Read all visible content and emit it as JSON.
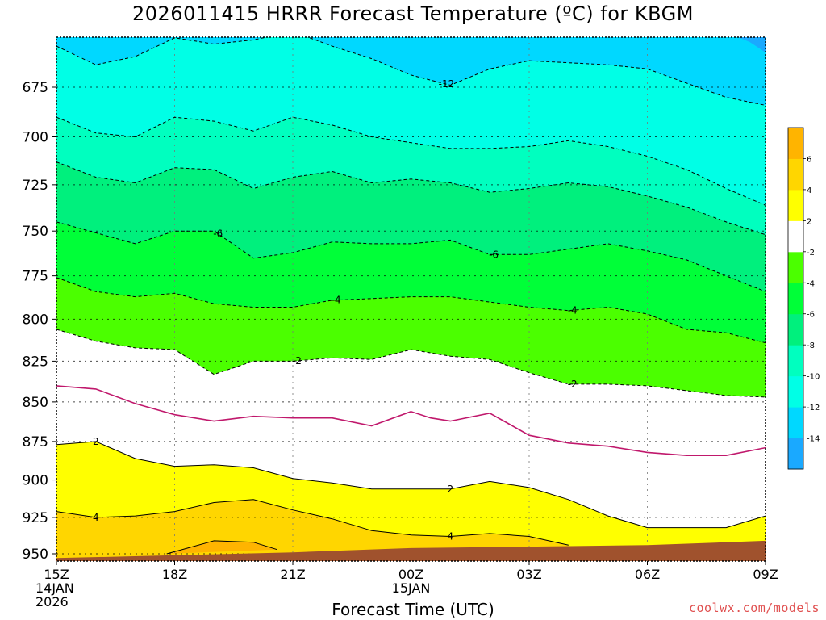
{
  "title": "2026011415 HRRR Forecast Temperature (ºC) for KBGM",
  "credit": "coolwx.com/models",
  "chart_data": {
    "type": "heatmap",
    "title": "2026011415 HRRR Forecast Temperature (ºC) for KBGM",
    "xlabel": "Forecast Time (UTC)",
    "ylabel": "",
    "x_range_hours": [
      0,
      18
    ],
    "y_range_hpa": [
      654,
      955
    ],
    "y_scale": "log-pressure (inverted)",
    "grid": true,
    "x_ticks": [
      {
        "h": 0,
        "lines": [
          "15Z",
          "14JAN",
          "2026"
        ]
      },
      {
        "h": 3,
        "lines": [
          "18Z"
        ]
      },
      {
        "h": 6,
        "lines": [
          "21Z"
        ]
      },
      {
        "h": 9,
        "lines": [
          "00Z",
          "15JAN"
        ]
      },
      {
        "h": 12,
        "lines": [
          "03Z"
        ]
      },
      {
        "h": 15,
        "lines": [
          "06Z"
        ]
      },
      {
        "h": 18,
        "lines": [
          "09Z"
        ]
      }
    ],
    "y_ticks": [
      675,
      700,
      725,
      750,
      775,
      800,
      825,
      850,
      875,
      900,
      925,
      950
    ],
    "colorbar": {
      "levels": [
        -16,
        -14,
        -12,
        -10,
        -8,
        -6,
        -4,
        -2,
        2,
        4,
        6,
        8
      ],
      "labels": [
        "-14",
        "-12",
        "-10",
        "-8",
        "-6",
        "-4",
        "-2",
        "2",
        "4",
        "6"
      ],
      "colors": [
        "#1aa9ff",
        "#00d8ff",
        "#00ffe6",
        "#00ffbf",
        "#00f07d",
        "#00ff38",
        "#4bff00",
        "#ffffff",
        "#ffff00",
        "#ffd600",
        "#ffb400"
      ]
    },
    "contours": [
      {
        "value": -12,
        "label": "-12",
        "style": "dashed",
        "color": "#000000",
        "label_at_h": 9.9,
        "points": [
          [
            0,
            655
          ],
          [
            1,
            664
          ],
          [
            2,
            660
          ],
          [
            3,
            651
          ],
          [
            4,
            654
          ],
          [
            5,
            652
          ],
          [
            6,
            648
          ],
          [
            7,
            655
          ],
          [
            8,
            661
          ],
          [
            9,
            669
          ],
          [
            10,
            674
          ],
          [
            11,
            666
          ],
          [
            12,
            662
          ],
          [
            13,
            663
          ],
          [
            14,
            664
          ],
          [
            15,
            666
          ],
          [
            16,
            673
          ],
          [
            17,
            680
          ],
          [
            18,
            684
          ]
        ]
      },
      {
        "value": -10,
        "label": "",
        "style": "dashed",
        "color": "#000000",
        "points": [
          [
            0,
            690
          ],
          [
            1,
            698
          ],
          [
            2,
            700
          ],
          [
            3,
            690
          ],
          [
            4,
            692
          ],
          [
            5,
            697
          ],
          [
            6,
            690
          ],
          [
            7,
            694
          ],
          [
            8,
            700
          ],
          [
            9,
            703
          ],
          [
            10,
            706
          ],
          [
            11,
            706
          ],
          [
            12,
            705
          ],
          [
            13,
            702
          ],
          [
            14,
            705
          ],
          [
            15,
            710
          ],
          [
            16,
            717
          ],
          [
            17,
            727
          ],
          [
            18,
            736
          ]
        ]
      },
      {
        "value": -8,
        "label": "",
        "style": "dashed",
        "color": "#000000",
        "points": [
          [
            0,
            713
          ],
          [
            1,
            721
          ],
          [
            2,
            724
          ],
          [
            3,
            716
          ],
          [
            4,
            717
          ],
          [
            5,
            727
          ],
          [
            6,
            721
          ],
          [
            7,
            718
          ],
          [
            8,
            724
          ],
          [
            9,
            722
          ],
          [
            10,
            724
          ],
          [
            11,
            729
          ],
          [
            12,
            727
          ],
          [
            13,
            724
          ],
          [
            14,
            726
          ],
          [
            15,
            731
          ],
          [
            16,
            737
          ],
          [
            17,
            745
          ],
          [
            18,
            752
          ]
        ]
      },
      {
        "value": -6,
        "label": "-6",
        "style": "dashed",
        "color": "#000000",
        "label_at_h": 4.1,
        "label_at_h2": 11.1,
        "points": [
          [
            0,
            745
          ],
          [
            1,
            751
          ],
          [
            2,
            757
          ],
          [
            3,
            750
          ],
          [
            4,
            750
          ],
          [
            5,
            765
          ],
          [
            6,
            762
          ],
          [
            7,
            756
          ],
          [
            8,
            757
          ],
          [
            9,
            757
          ],
          [
            10,
            755
          ],
          [
            11,
            763
          ],
          [
            12,
            763
          ],
          [
            13,
            760
          ],
          [
            14,
            757
          ],
          [
            15,
            761
          ],
          [
            16,
            766
          ],
          [
            17,
            775
          ],
          [
            18,
            784
          ]
        ]
      },
      {
        "value": -4,
        "label": "-4",
        "style": "dashed",
        "color": "#000000",
        "label_at_h": 7.1,
        "label_at_h2": 13.1,
        "points": [
          [
            0,
            776
          ],
          [
            1,
            784
          ],
          [
            2,
            787
          ],
          [
            3,
            785
          ],
          [
            4,
            791
          ],
          [
            5,
            793
          ],
          [
            6,
            793
          ],
          [
            7,
            789
          ],
          [
            8,
            788
          ],
          [
            9,
            787
          ],
          [
            10,
            787
          ],
          [
            11,
            790
          ],
          [
            12,
            793
          ],
          [
            13,
            795
          ],
          [
            14,
            793
          ],
          [
            15,
            797
          ],
          [
            16,
            806
          ],
          [
            17,
            808
          ],
          [
            18,
            814
          ]
        ]
      },
      {
        "value": -2,
        "label": "-2",
        "style": "dashed",
        "color": "#000000",
        "label_at_h": 6.1,
        "label_at_h2": 13.1,
        "points": [
          [
            0,
            806
          ],
          [
            1,
            813
          ],
          [
            2,
            817
          ],
          [
            3,
            818
          ],
          [
            4,
            833
          ],
          [
            5,
            825
          ],
          [
            6,
            825
          ],
          [
            7,
            823
          ],
          [
            8,
            824
          ],
          [
            9,
            818
          ],
          [
            10,
            822
          ],
          [
            11,
            824
          ],
          [
            12,
            832
          ],
          [
            13,
            839
          ],
          [
            14,
            839
          ],
          [
            15,
            840
          ],
          [
            16,
            843
          ],
          [
            17,
            846
          ],
          [
            18,
            847
          ]
        ]
      },
      {
        "value": 0,
        "label": "",
        "style": "solid",
        "color": "#c0186c",
        "points": [
          [
            0,
            840
          ],
          [
            1,
            842
          ],
          [
            2,
            851
          ],
          [
            3,
            858
          ],
          [
            4,
            862
          ],
          [
            5,
            859
          ],
          [
            6,
            860
          ],
          [
            7,
            860
          ],
          [
            8,
            865
          ],
          [
            9,
            856
          ],
          [
            9.5,
            860
          ],
          [
            10,
            862
          ],
          [
            11,
            857
          ],
          [
            11.5,
            864
          ],
          [
            12,
            871
          ],
          [
            13,
            876
          ],
          [
            14,
            878
          ],
          [
            15,
            882
          ],
          [
            16,
            884
          ],
          [
            17,
            884
          ],
          [
            18,
            879
          ]
        ]
      },
      {
        "value": 2,
        "label": "2",
        "style": "solid",
        "color": "#000000",
        "label_at_h": 1.0,
        "label_at_h2": 10.0,
        "points": [
          [
            0,
            877
          ],
          [
            1,
            875
          ],
          [
            2,
            886
          ],
          [
            3,
            891
          ],
          [
            4,
            890
          ],
          [
            5,
            892
          ],
          [
            6,
            899
          ],
          [
            7,
            902
          ],
          [
            8,
            906
          ],
          [
            9,
            906
          ],
          [
            10,
            906
          ],
          [
            11,
            901
          ],
          [
            12,
            905
          ],
          [
            13,
            913
          ],
          [
            14,
            924
          ],
          [
            15,
            932
          ],
          [
            16,
            932
          ],
          [
            17,
            932
          ],
          [
            18,
            924
          ]
        ]
      },
      {
        "value": 4,
        "label": "4",
        "style": "solid",
        "color": "#000000",
        "label_at_h": 1.0,
        "label_at_h2": 10.0,
        "points": [
          [
            0,
            921
          ],
          [
            1,
            925
          ],
          [
            2,
            924
          ],
          [
            3,
            921
          ],
          [
            4,
            915
          ],
          [
            5,
            913
          ],
          [
            6,
            920
          ],
          [
            7,
            926
          ],
          [
            8,
            934
          ],
          [
            9,
            937
          ],
          [
            10,
            938
          ],
          [
            11,
            936
          ],
          [
            12,
            938
          ],
          [
            13,
            944
          ]
        ]
      },
      {
        "value": 6,
        "label": "",
        "style": "solid",
        "color": "#000000",
        "points": [
          [
            2.8,
            950
          ],
          [
            4,
            941
          ],
          [
            5,
            942
          ],
          [
            5.6,
            947
          ]
        ]
      }
    ],
    "terrain": {
      "color": "#a0522d",
      "points": [
        [
          0,
          953
        ],
        [
          3,
          951
        ],
        [
          6,
          949
        ],
        [
          9,
          946
        ],
        [
          12,
          945
        ],
        [
          15,
          944
        ],
        [
          18,
          941
        ]
      ]
    }
  }
}
